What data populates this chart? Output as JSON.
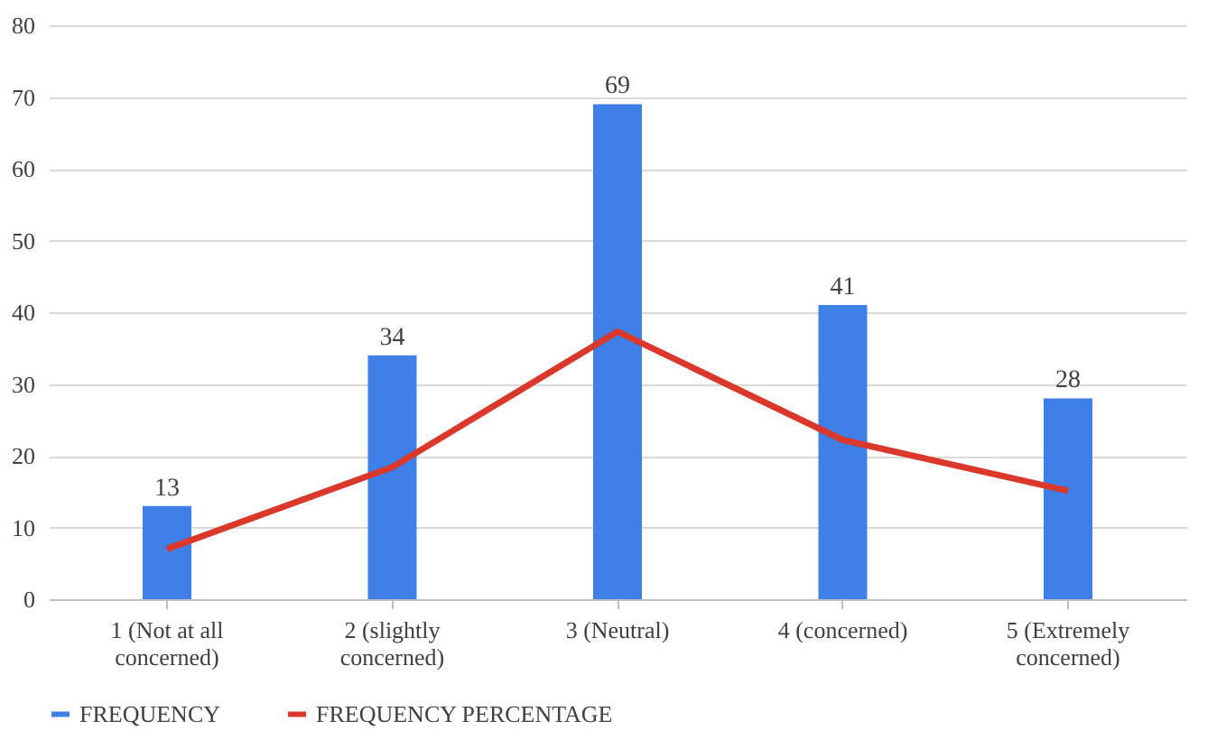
{
  "chart_data": {
    "type": "bar",
    "categories": [
      "1 (Not at all concerned)",
      "2 (slightly concerned)",
      "3 (Neutral)",
      "4 (concerned)",
      "5 (Extremely concerned)"
    ],
    "series": [
      {
        "name": "FREQUENCY",
        "type": "bar",
        "color": "#3f7fe8",
        "values": [
          13,
          34,
          69,
          41,
          28
        ],
        "value_labels": [
          "13",
          "34",
          "69",
          "41",
          "28"
        ]
      },
      {
        "name": "FREQUENCY PERCENTAGE",
        "type": "line",
        "color": "#d9382b",
        "values": [
          7,
          18.4,
          37.3,
          22.2,
          15.1
        ]
      }
    ],
    "ylim": [
      0,
      80
    ],
    "yticks": [
      0,
      10,
      20,
      30,
      40,
      50,
      60,
      70,
      80
    ],
    "grid": "y",
    "legend": "bottom",
    "marker": "none",
    "line_style": "solid"
  }
}
